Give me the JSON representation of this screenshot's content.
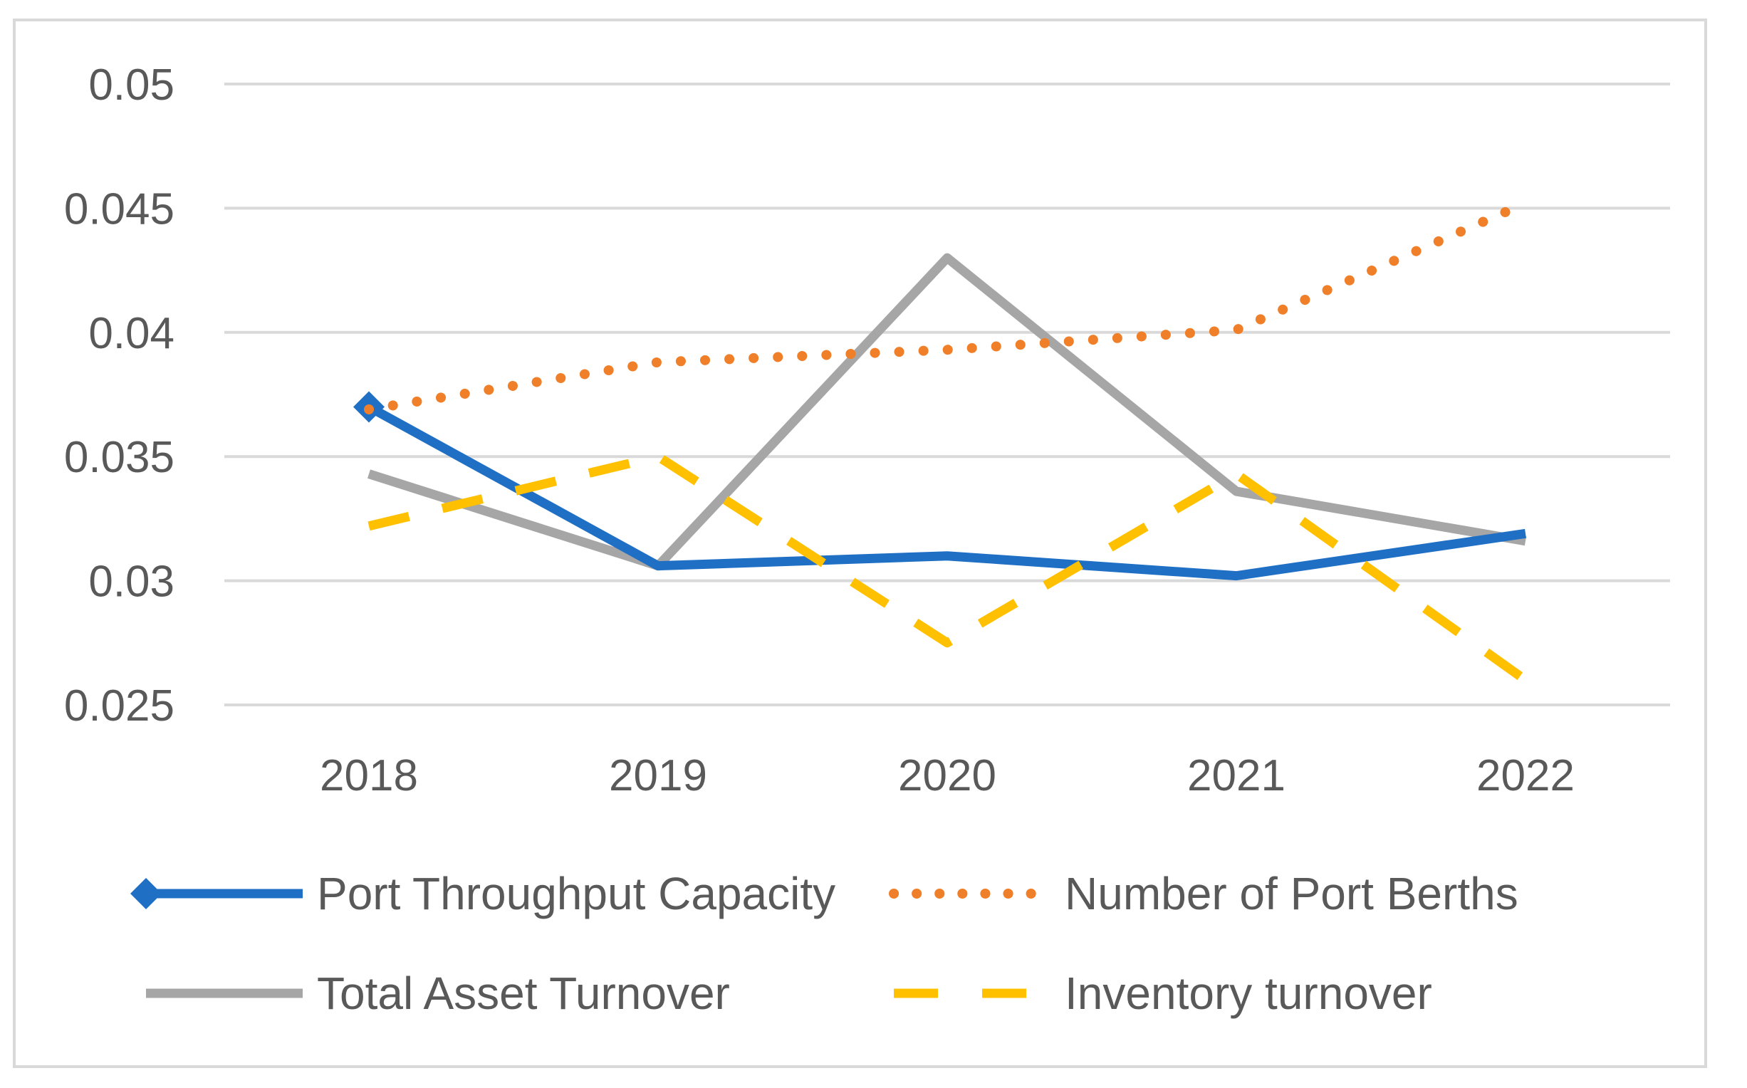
{
  "chart_data": {
    "type": "line",
    "title": "",
    "xlabel": "",
    "ylabel": "",
    "categories": [
      "2018",
      "2019",
      "2020",
      "2021",
      "2022"
    ],
    "ylim": [
      0.025,
      0.05
    ],
    "yticks": [
      "0.025",
      "0.03",
      "0.035",
      "0.04",
      "0.045",
      "0.05"
    ],
    "grid": true,
    "legend_position": "bottom",
    "series": [
      {
        "name": "Port Throughput Capacity",
        "values": [
          0.037,
          0.0306,
          0.031,
          0.0302,
          0.0319
        ],
        "color": "#1f6fc5",
        "style": "solid",
        "marker": "diamond"
      },
      {
        "name": "Number of Port Berths",
        "values": [
          0.0369,
          0.0388,
          0.0393,
          0.0401,
          0.0452
        ],
        "color": "#f07f2a",
        "style": "dotted"
      },
      {
        "name": "Total Asset Turnover",
        "values": [
          0.0343,
          0.0306,
          0.043,
          0.0336,
          0.0316
        ],
        "color": "#a6a6a6",
        "style": "solid"
      },
      {
        "name": "Inventory turnover",
        "values": [
          0.0322,
          0.035,
          0.0275,
          0.0343,
          0.026
        ],
        "color": "#ffc000",
        "style": "dashed"
      }
    ]
  }
}
